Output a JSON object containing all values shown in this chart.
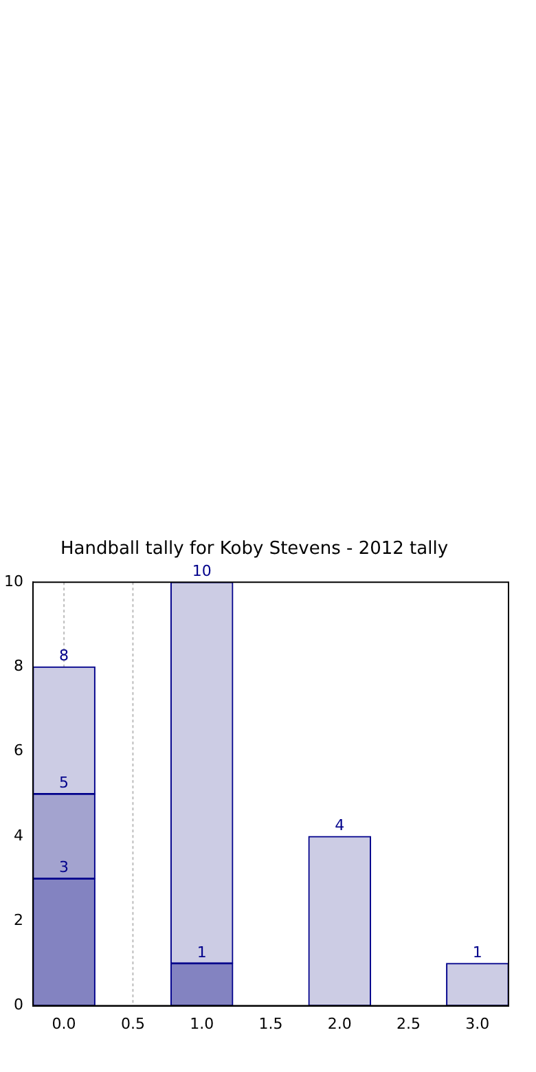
{
  "chart_data": {
    "type": "bar",
    "title": "Handball tally for Koby Stevens - 2012 tally",
    "x": [
      0,
      1,
      2,
      3
    ],
    "stacked": true,
    "series": [
      {
        "color": "#8383c1",
        "values": [
          3,
          1,
          null,
          null
        ]
      },
      {
        "color": "#a3a3cf",
        "values": [
          2,
          null,
          null,
          null
        ]
      },
      {
        "color": "#cccce4",
        "values": [
          3,
          9,
          4,
          1
        ]
      }
    ],
    "annotations": [
      {
        "text": "3",
        "x": 0,
        "y": 3
      },
      {
        "text": "5",
        "x": 0,
        "y": 5
      },
      {
        "text": "8",
        "x": 0,
        "y": 8
      },
      {
        "text": "1",
        "x": 1,
        "y": 1
      },
      {
        "text": "10",
        "x": 1,
        "y": 10
      },
      {
        "text": "4",
        "x": 2,
        "y": 4
      },
      {
        "text": "1",
        "x": 3,
        "y": 1
      }
    ],
    "xlim": [
      -0.225,
      3.225
    ],
    "xticks": [
      {
        "value": 0,
        "label": "0.0"
      },
      {
        "value": 0.5,
        "label": "0.5"
      },
      {
        "value": 1,
        "label": "1.0"
      },
      {
        "value": 1.5,
        "label": "1.5"
      },
      {
        "value": 2,
        "label": "2.0"
      },
      {
        "value": 2.5,
        "label": "2.5"
      },
      {
        "value": 3,
        "label": "3.0"
      }
    ],
    "ylim": [
      0,
      10
    ],
    "yticks": [
      0,
      2,
      4,
      6,
      8,
      10
    ],
    "ref_lines": [
      {
        "axis": "x",
        "value": 0,
        "color": "#bbbbbb",
        "line_style": "dotted"
      },
      {
        "axis": "x",
        "value": 0.5,
        "color": "#bbbbbb",
        "line_style": "dotted"
      }
    ]
  }
}
